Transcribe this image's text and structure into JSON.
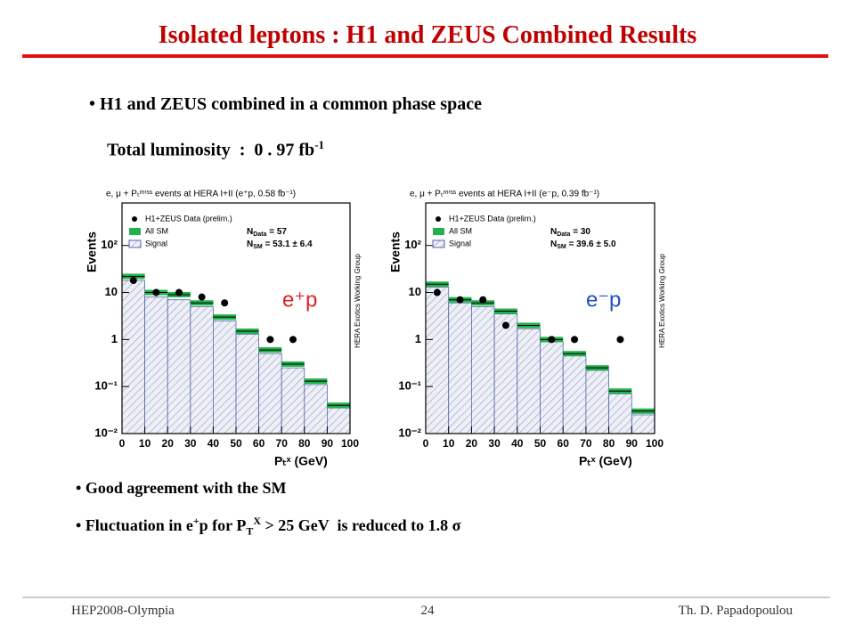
{
  "slide": {
    "title": "Isolated leptons : H1 and ZEUS Combined Results",
    "bullets_top": [
      "H1 and ZEUS combined in a common phase space"
    ],
    "luminosity": {
      "text": "Total luminosity  :  0 . 97 fb",
      "sup": "-1"
    },
    "bullets_bottom": {
      "agreement": "Good agreement with the SM",
      "fluctuation": {
        "a": "Fluctuation in e",
        "sup1": "+",
        "b": "p for P",
        "sub": "T",
        "sup2": "X",
        "c": " > 25 GeV  is reduced to 1.8 σ"
      }
    },
    "footer": {
      "left": "HEP2008-Olympia",
      "center": "24",
      "right": "Th. D. Papadopoulou"
    }
  },
  "chart_data": [
    {
      "type": "histogram",
      "title": "e, μ + Pₜᵐⁱˢˢ events at HERA I+II (e⁺p, 0.58 fb⁻¹)",
      "xlabel": "Pₜˣ (GeV)",
      "ylabel": "Events",
      "side_text": "HERA Exotics Working Group",
      "label": "e⁺p",
      "label_color": "#e02020",
      "annotations": [
        {
          "symbol": "N",
          "sub": "Data",
          "text": " = 57"
        },
        {
          "symbol": "N",
          "sub": "SM",
          "text": " = 53.1 ± 6.4"
        }
      ],
      "bins": [
        0,
        10,
        20,
        30,
        40,
        50,
        60,
        70,
        80,
        90,
        100
      ],
      "series": [
        {
          "name": "H1+ZEUS Data (prelim.)",
          "color": "#000000",
          "values": [
            18,
            10,
            10,
            8,
            6,
            null,
            1,
            1,
            null,
            null
          ]
        },
        {
          "name": "All SM",
          "color": "#22b14c",
          "values": [
            22,
            10,
            9,
            6,
            3,
            1.5,
            0.6,
            0.3,
            0.13,
            0.04
          ]
        },
        {
          "name": "Signal",
          "color": "#5566aa",
          "values": [
            18,
            8,
            7,
            5,
            2.5,
            1.3,
            0.5,
            0.25,
            0.11,
            0.035
          ]
        }
      ],
      "xlim": [
        0,
        100
      ],
      "xticks": [
        0,
        10,
        20,
        30,
        40,
        50,
        60,
        70,
        80,
        90,
        100
      ],
      "ylim": [
        0.01,
        800
      ],
      "log_y": true,
      "yticks": [
        {
          "value": 0.01,
          "label": "10⁻²"
        },
        {
          "value": 0.1,
          "label": "10⁻¹"
        },
        1,
        10,
        {
          "value": 100,
          "label": "10²"
        }
      ]
    },
    {
      "type": "histogram",
      "title": "e, μ + Pₜᵐⁱˢˢ events at HERA I+II (e⁻p, 0.39 fb⁻¹)",
      "xlabel": "Pₜˣ (GeV)",
      "ylabel": "Events",
      "side_text": "HERA Exotics Working Group",
      "label": "e⁻p",
      "label_color": "#2050c0",
      "annotations": [
        {
          "symbol": "N",
          "sub": "Data",
          "text": " = 30"
        },
        {
          "symbol": "N",
          "sub": "SM",
          "text": " = 39.6 ± 5.0"
        }
      ],
      "bins": [
        0,
        10,
        20,
        30,
        40,
        50,
        60,
        70,
        80,
        90,
        100
      ],
      "series": [
        {
          "name": "H1+ZEUS Data (prelim.)",
          "color": "#000000",
          "values": [
            10,
            7,
            7,
            2,
            null,
            1,
            1,
            null,
            1,
            null
          ]
        },
        {
          "name": "All SM",
          "color": "#22b14c",
          "values": [
            15,
            7,
            6,
            4,
            2,
            1,
            0.5,
            0.25,
            0.08,
            0.03
          ]
        },
        {
          "name": "Signal",
          "color": "#5566aa",
          "values": [
            13,
            6,
            5,
            3.5,
            1.7,
            0.9,
            0.45,
            0.22,
            0.07,
            0.025
          ]
        }
      ],
      "xlim": [
        0,
        100
      ],
      "xticks": [
        0,
        10,
        20,
        30,
        40,
        50,
        60,
        70,
        80,
        90,
        100
      ],
      "ylim": [
        0.01,
        800
      ],
      "log_y": true,
      "yticks": [
        {
          "value": 0.01,
          "label": "10⁻²"
        },
        {
          "value": 0.1,
          "label": "10⁻¹"
        },
        1,
        10,
        {
          "value": 100,
          "label": "10²"
        }
      ]
    }
  ]
}
